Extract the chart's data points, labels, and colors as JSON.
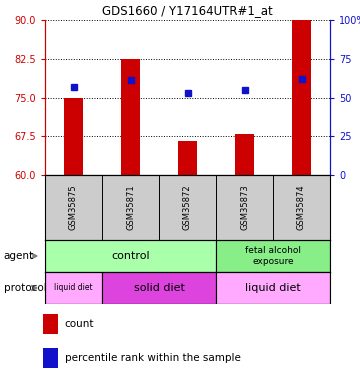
{
  "title": "GDS1660 / Y17164UTR#1_at",
  "samples": [
    "GSM35875",
    "GSM35871",
    "GSM35872",
    "GSM35873",
    "GSM35874"
  ],
  "bar_bottoms": [
    60,
    60,
    60,
    60,
    60
  ],
  "bar_tops": [
    75.0,
    82.5,
    66.5,
    68.0,
    90.0
  ],
  "percentile_ranks_pct": [
    57,
    61,
    53,
    55,
    62
  ],
  "ylim_left": [
    60,
    90
  ],
  "ylim_right": [
    0,
    100
  ],
  "yticks_left": [
    60,
    67.5,
    75,
    82.5,
    90
  ],
  "yticks_right": [
    0,
    25,
    50,
    75,
    100
  ],
  "yticklabels_right": [
    "0",
    "25",
    "50",
    "75",
    "100%"
  ],
  "bar_color": "#cc0000",
  "dot_color": "#1111cc",
  "agent_colors": [
    "#aaffaa",
    "#aaffaa"
  ],
  "protocol_colors": [
    "#ffaaff",
    "#ee44ee",
    "#ffaaff"
  ],
  "label_color_agent": "#aaffaa",
  "label_color_protocol_light": "#ffaaff",
  "label_color_protocol_dark": "#ee44ee"
}
